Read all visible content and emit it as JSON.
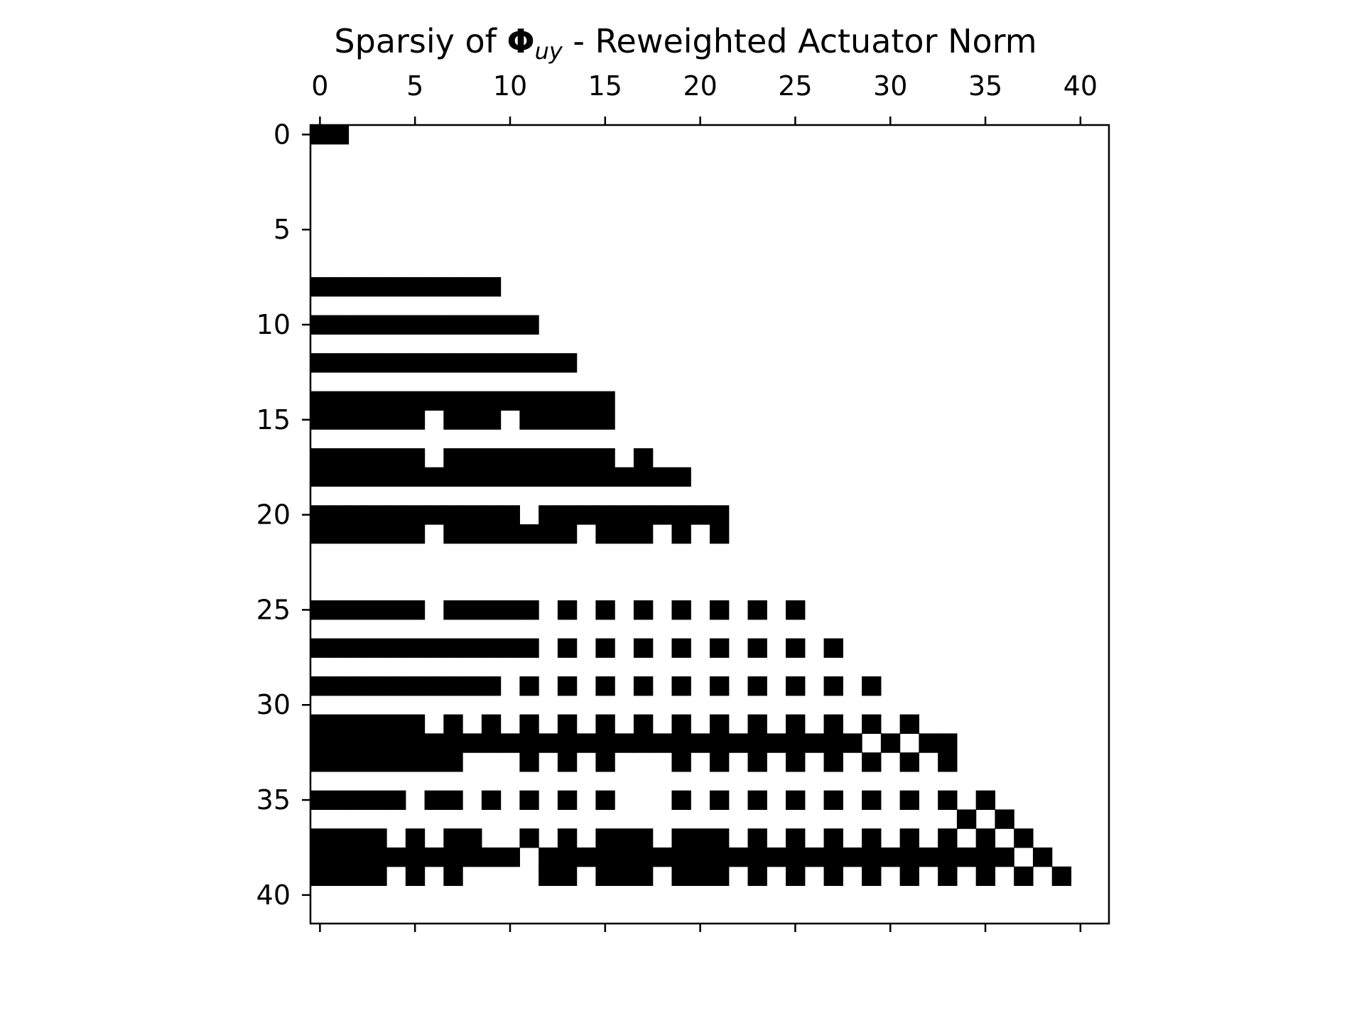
{
  "chart_data": {
    "type": "heatmap",
    "title": {
      "prefix": "Sparsiy of ",
      "symbol": "Φ",
      "subscript": "uy",
      "suffix": " - Reweighted Actuator Norm"
    },
    "xlabel": "",
    "ylabel": "",
    "x_ticks": [
      0,
      5,
      10,
      15,
      20,
      25,
      30,
      35,
      40
    ],
    "y_ticks": [
      0,
      5,
      10,
      15,
      20,
      25,
      30,
      35,
      40
    ],
    "x_tick_position": "top",
    "xlim": [
      -0.5,
      41.5
    ],
    "ylim": [
      41.5,
      -0.5
    ],
    "grid": false,
    "colors": {
      "nonzero": "#000000",
      "zero": "#ffffff",
      "frame": "#000000"
    },
    "rows": 42,
    "cols": 42,
    "nonzero_cells": [
      [
        0,
        0
      ],
      [
        0,
        1
      ],
      [
        8,
        0
      ],
      [
        8,
        1
      ],
      [
        8,
        2
      ],
      [
        8,
        3
      ],
      [
        8,
        4
      ],
      [
        8,
        5
      ],
      [
        8,
        6
      ],
      [
        8,
        7
      ],
      [
        8,
        8
      ],
      [
        8,
        9
      ],
      [
        10,
        0
      ],
      [
        10,
        1
      ],
      [
        10,
        2
      ],
      [
        10,
        3
      ],
      [
        10,
        4
      ],
      [
        10,
        5
      ],
      [
        10,
        6
      ],
      [
        10,
        7
      ],
      [
        10,
        8
      ],
      [
        10,
        9
      ],
      [
        10,
        10
      ],
      [
        10,
        11
      ],
      [
        12,
        0
      ],
      [
        12,
        1
      ],
      [
        12,
        2
      ],
      [
        12,
        3
      ],
      [
        12,
        4
      ],
      [
        12,
        5
      ],
      [
        12,
        6
      ],
      [
        12,
        7
      ],
      [
        12,
        8
      ],
      [
        12,
        9
      ],
      [
        12,
        10
      ],
      [
        12,
        11
      ],
      [
        12,
        12
      ],
      [
        12,
        13
      ],
      [
        14,
        0
      ],
      [
        14,
        1
      ],
      [
        14,
        2
      ],
      [
        14,
        3
      ],
      [
        14,
        4
      ],
      [
        14,
        5
      ],
      [
        14,
        6
      ],
      [
        14,
        7
      ],
      [
        14,
        8
      ],
      [
        14,
        9
      ],
      [
        14,
        10
      ],
      [
        14,
        11
      ],
      [
        14,
        12
      ],
      [
        14,
        13
      ],
      [
        14,
        14
      ],
      [
        14,
        15
      ],
      [
        15,
        0
      ],
      [
        15,
        1
      ],
      [
        15,
        2
      ],
      [
        15,
        3
      ],
      [
        15,
        4
      ],
      [
        15,
        5
      ],
      [
        15,
        7
      ],
      [
        15,
        8
      ],
      [
        15,
        9
      ],
      [
        15,
        11
      ],
      [
        15,
        12
      ],
      [
        15,
        13
      ],
      [
        15,
        14
      ],
      [
        15,
        15
      ],
      [
        17,
        0
      ],
      [
        17,
        1
      ],
      [
        17,
        2
      ],
      [
        17,
        3
      ],
      [
        17,
        4
      ],
      [
        17,
        5
      ],
      [
        17,
        7
      ],
      [
        17,
        8
      ],
      [
        17,
        9
      ],
      [
        17,
        10
      ],
      [
        17,
        11
      ],
      [
        17,
        12
      ],
      [
        17,
        13
      ],
      [
        17,
        14
      ],
      [
        17,
        15
      ],
      [
        17,
        17
      ],
      [
        18,
        0
      ],
      [
        18,
        1
      ],
      [
        18,
        2
      ],
      [
        18,
        3
      ],
      [
        18,
        4
      ],
      [
        18,
        5
      ],
      [
        18,
        6
      ],
      [
        18,
        7
      ],
      [
        18,
        8
      ],
      [
        18,
        9
      ],
      [
        18,
        10
      ],
      [
        18,
        11
      ],
      [
        18,
        12
      ],
      [
        18,
        13
      ],
      [
        18,
        14
      ],
      [
        18,
        15
      ],
      [
        18,
        16
      ],
      [
        18,
        17
      ],
      [
        18,
        18
      ],
      [
        18,
        19
      ],
      [
        20,
        0
      ],
      [
        20,
        1
      ],
      [
        20,
        2
      ],
      [
        20,
        3
      ],
      [
        20,
        4
      ],
      [
        20,
        5
      ],
      [
        20,
        6
      ],
      [
        20,
        7
      ],
      [
        20,
        8
      ],
      [
        20,
        9
      ],
      [
        20,
        10
      ],
      [
        20,
        12
      ],
      [
        20,
        13
      ],
      [
        20,
        14
      ],
      [
        20,
        15
      ],
      [
        20,
        16
      ],
      [
        20,
        17
      ],
      [
        20,
        18
      ],
      [
        20,
        19
      ],
      [
        20,
        20
      ],
      [
        20,
        21
      ],
      [
        21,
        0
      ],
      [
        21,
        1
      ],
      [
        21,
        2
      ],
      [
        21,
        3
      ],
      [
        21,
        4
      ],
      [
        21,
        5
      ],
      [
        21,
        7
      ],
      [
        21,
        8
      ],
      [
        21,
        9
      ],
      [
        21,
        10
      ],
      [
        21,
        11
      ],
      [
        21,
        12
      ],
      [
        21,
        13
      ],
      [
        21,
        15
      ],
      [
        21,
        16
      ],
      [
        21,
        17
      ],
      [
        21,
        19
      ],
      [
        21,
        21
      ],
      [
        25,
        0
      ],
      [
        25,
        1
      ],
      [
        25,
        2
      ],
      [
        25,
        3
      ],
      [
        25,
        4
      ],
      [
        25,
        5
      ],
      [
        25,
        7
      ],
      [
        25,
        8
      ],
      [
        25,
        9
      ],
      [
        25,
        10
      ],
      [
        25,
        11
      ],
      [
        25,
        13
      ],
      [
        25,
        15
      ],
      [
        25,
        17
      ],
      [
        25,
        19
      ],
      [
        25,
        21
      ],
      [
        25,
        23
      ],
      [
        25,
        25
      ],
      [
        27,
        0
      ],
      [
        27,
        1
      ],
      [
        27,
        2
      ],
      [
        27,
        3
      ],
      [
        27,
        4
      ],
      [
        27,
        5
      ],
      [
        27,
        6
      ],
      [
        27,
        7
      ],
      [
        27,
        8
      ],
      [
        27,
        9
      ],
      [
        27,
        10
      ],
      [
        27,
        11
      ],
      [
        27,
        13
      ],
      [
        27,
        15
      ],
      [
        27,
        17
      ],
      [
        27,
        19
      ],
      [
        27,
        21
      ],
      [
        27,
        23
      ],
      [
        27,
        25
      ],
      [
        27,
        27
      ],
      [
        29,
        0
      ],
      [
        29,
        1
      ],
      [
        29,
        2
      ],
      [
        29,
        3
      ],
      [
        29,
        4
      ],
      [
        29,
        5
      ],
      [
        29,
        6
      ],
      [
        29,
        7
      ],
      [
        29,
        8
      ],
      [
        29,
        9
      ],
      [
        29,
        11
      ],
      [
        29,
        13
      ],
      [
        29,
        15
      ],
      [
        29,
        17
      ],
      [
        29,
        19
      ],
      [
        29,
        21
      ],
      [
        29,
        23
      ],
      [
        29,
        25
      ],
      [
        29,
        27
      ],
      [
        29,
        29
      ],
      [
        31,
        0
      ],
      [
        31,
        1
      ],
      [
        31,
        2
      ],
      [
        31,
        3
      ],
      [
        31,
        4
      ],
      [
        31,
        5
      ],
      [
        31,
        7
      ],
      [
        31,
        9
      ],
      [
        31,
        11
      ],
      [
        31,
        13
      ],
      [
        31,
        15
      ],
      [
        31,
        17
      ],
      [
        31,
        19
      ],
      [
        31,
        21
      ],
      [
        31,
        23
      ],
      [
        31,
        25
      ],
      [
        31,
        27
      ],
      [
        31,
        29
      ],
      [
        31,
        31
      ],
      [
        32,
        0
      ],
      [
        32,
        1
      ],
      [
        32,
        2
      ],
      [
        32,
        3
      ],
      [
        32,
        4
      ],
      [
        32,
        5
      ],
      [
        32,
        6
      ],
      [
        32,
        7
      ],
      [
        32,
        8
      ],
      [
        32,
        9
      ],
      [
        32,
        10
      ],
      [
        32,
        11
      ],
      [
        32,
        12
      ],
      [
        32,
        13
      ],
      [
        32,
        14
      ],
      [
        32,
        15
      ],
      [
        32,
        16
      ],
      [
        32,
        17
      ],
      [
        32,
        18
      ],
      [
        32,
        19
      ],
      [
        32,
        20
      ],
      [
        32,
        21
      ],
      [
        32,
        22
      ],
      [
        32,
        23
      ],
      [
        32,
        24
      ],
      [
        32,
        25
      ],
      [
        32,
        26
      ],
      [
        32,
        27
      ],
      [
        32,
        28
      ],
      [
        32,
        30
      ],
      [
        32,
        32
      ],
      [
        32,
        33
      ],
      [
        33,
        0
      ],
      [
        33,
        1
      ],
      [
        33,
        2
      ],
      [
        33,
        3
      ],
      [
        33,
        4
      ],
      [
        33,
        5
      ],
      [
        33,
        6
      ],
      [
        33,
        7
      ],
      [
        33,
        11
      ],
      [
        33,
        13
      ],
      [
        33,
        15
      ],
      [
        33,
        19
      ],
      [
        33,
        21
      ],
      [
        33,
        23
      ],
      [
        33,
        25
      ],
      [
        33,
        27
      ],
      [
        33,
        29
      ],
      [
        33,
        31
      ],
      [
        33,
        33
      ],
      [
        35,
        0
      ],
      [
        35,
        1
      ],
      [
        35,
        2
      ],
      [
        35,
        3
      ],
      [
        35,
        4
      ],
      [
        35,
        6
      ],
      [
        35,
        7
      ],
      [
        35,
        9
      ],
      [
        35,
        11
      ],
      [
        35,
        13
      ],
      [
        35,
        15
      ],
      [
        35,
        19
      ],
      [
        35,
        21
      ],
      [
        35,
        23
      ],
      [
        35,
        25
      ],
      [
        35,
        27
      ],
      [
        35,
        29
      ],
      [
        35,
        31
      ],
      [
        35,
        33
      ],
      [
        35,
        35
      ],
      [
        36,
        34
      ],
      [
        36,
        36
      ],
      [
        37,
        0
      ],
      [
        37,
        1
      ],
      [
        37,
        2
      ],
      [
        37,
        3
      ],
      [
        37,
        5
      ],
      [
        37,
        7
      ],
      [
        37,
        8
      ],
      [
        37,
        11
      ],
      [
        37,
        13
      ],
      [
        37,
        15
      ],
      [
        37,
        16
      ],
      [
        37,
        17
      ],
      [
        37,
        19
      ],
      [
        37,
        20
      ],
      [
        37,
        21
      ],
      [
        37,
        23
      ],
      [
        37,
        25
      ],
      [
        37,
        27
      ],
      [
        37,
        29
      ],
      [
        37,
        31
      ],
      [
        37,
        33
      ],
      [
        37,
        35
      ],
      [
        37,
        37
      ],
      [
        38,
        0
      ],
      [
        38,
        1
      ],
      [
        38,
        2
      ],
      [
        38,
        3
      ],
      [
        38,
        4
      ],
      [
        38,
        5
      ],
      [
        38,
        6
      ],
      [
        38,
        7
      ],
      [
        38,
        8
      ],
      [
        38,
        9
      ],
      [
        38,
        10
      ],
      [
        38,
        12
      ],
      [
        38,
        13
      ],
      [
        38,
        14
      ],
      [
        38,
        15
      ],
      [
        38,
        16
      ],
      [
        38,
        17
      ],
      [
        38,
        18
      ],
      [
        38,
        19
      ],
      [
        38,
        20
      ],
      [
        38,
        21
      ],
      [
        38,
        22
      ],
      [
        38,
        23
      ],
      [
        38,
        24
      ],
      [
        38,
        25
      ],
      [
        38,
        26
      ],
      [
        38,
        27
      ],
      [
        38,
        28
      ],
      [
        38,
        29
      ],
      [
        38,
        30
      ],
      [
        38,
        31
      ],
      [
        38,
        32
      ],
      [
        38,
        33
      ],
      [
        38,
        34
      ],
      [
        38,
        35
      ],
      [
        38,
        36
      ],
      [
        38,
        38
      ],
      [
        39,
        0
      ],
      [
        39,
        1
      ],
      [
        39,
        2
      ],
      [
        39,
        3
      ],
      [
        39,
        5
      ],
      [
        39,
        7
      ],
      [
        39,
        12
      ],
      [
        39,
        13
      ],
      [
        39,
        15
      ],
      [
        39,
        16
      ],
      [
        39,
        17
      ],
      [
        39,
        19
      ],
      [
        39,
        20
      ],
      [
        39,
        21
      ],
      [
        39,
        23
      ],
      [
        39,
        25
      ],
      [
        39,
        27
      ],
      [
        39,
        29
      ],
      [
        39,
        31
      ],
      [
        39,
        33
      ],
      [
        39,
        35
      ],
      [
        39,
        37
      ],
      [
        39,
        39
      ]
    ]
  }
}
